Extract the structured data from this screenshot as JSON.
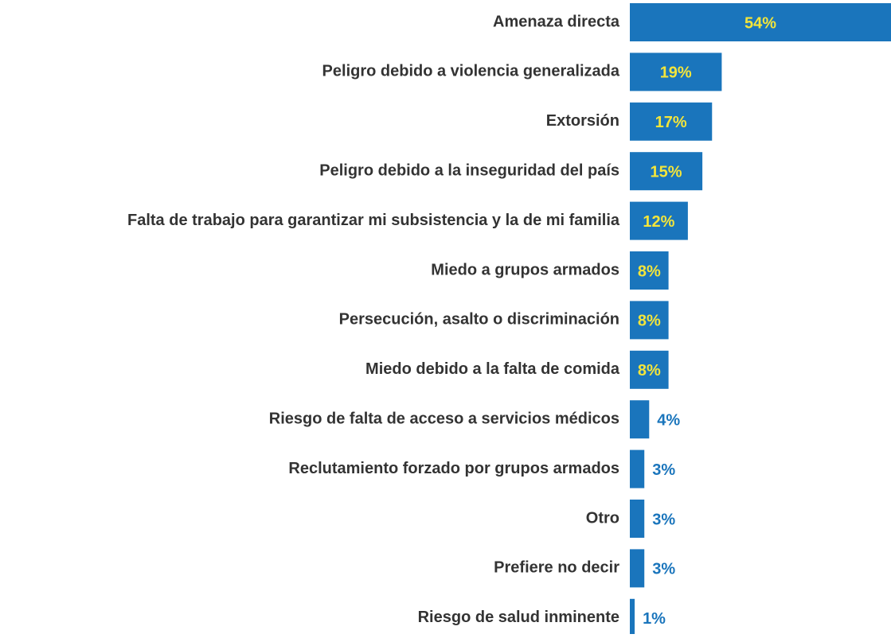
{
  "chart_data": {
    "type": "bar",
    "orientation": "horizontal",
    "categories": [
      "Amenaza directa",
      "Peligro debido a violencia generalizada",
      "Extorsión",
      "Peligro debido a la inseguridad del país",
      "Falta de trabajo para garantizar mi subsistencia y la de mi familia",
      "Miedo a grupos armados",
      "Persecución, asalto o discriminación",
      "Miedo debido a la falta de comida",
      "Riesgo de falta de acceso a servicios médicos",
      "Reclutamiento forzado por grupos armados",
      "Otro",
      "Prefiere no decir",
      "Riesgo de salud inminente"
    ],
    "values": [
      54,
      19,
      17,
      15,
      12,
      8,
      8,
      8,
      4,
      3,
      3,
      3,
      1
    ],
    "value_labels": [
      "54%",
      "19%",
      "17%",
      "15%",
      "12%",
      "8%",
      "8%",
      "8%",
      "4%",
      "3%",
      "3%",
      "3%",
      "1%"
    ],
    "color": "#1a75bc",
    "value_label_color_inside": "#f3e53b",
    "value_label_color_outside": "#1a75bc",
    "xlim": [
      0,
      54
    ]
  }
}
